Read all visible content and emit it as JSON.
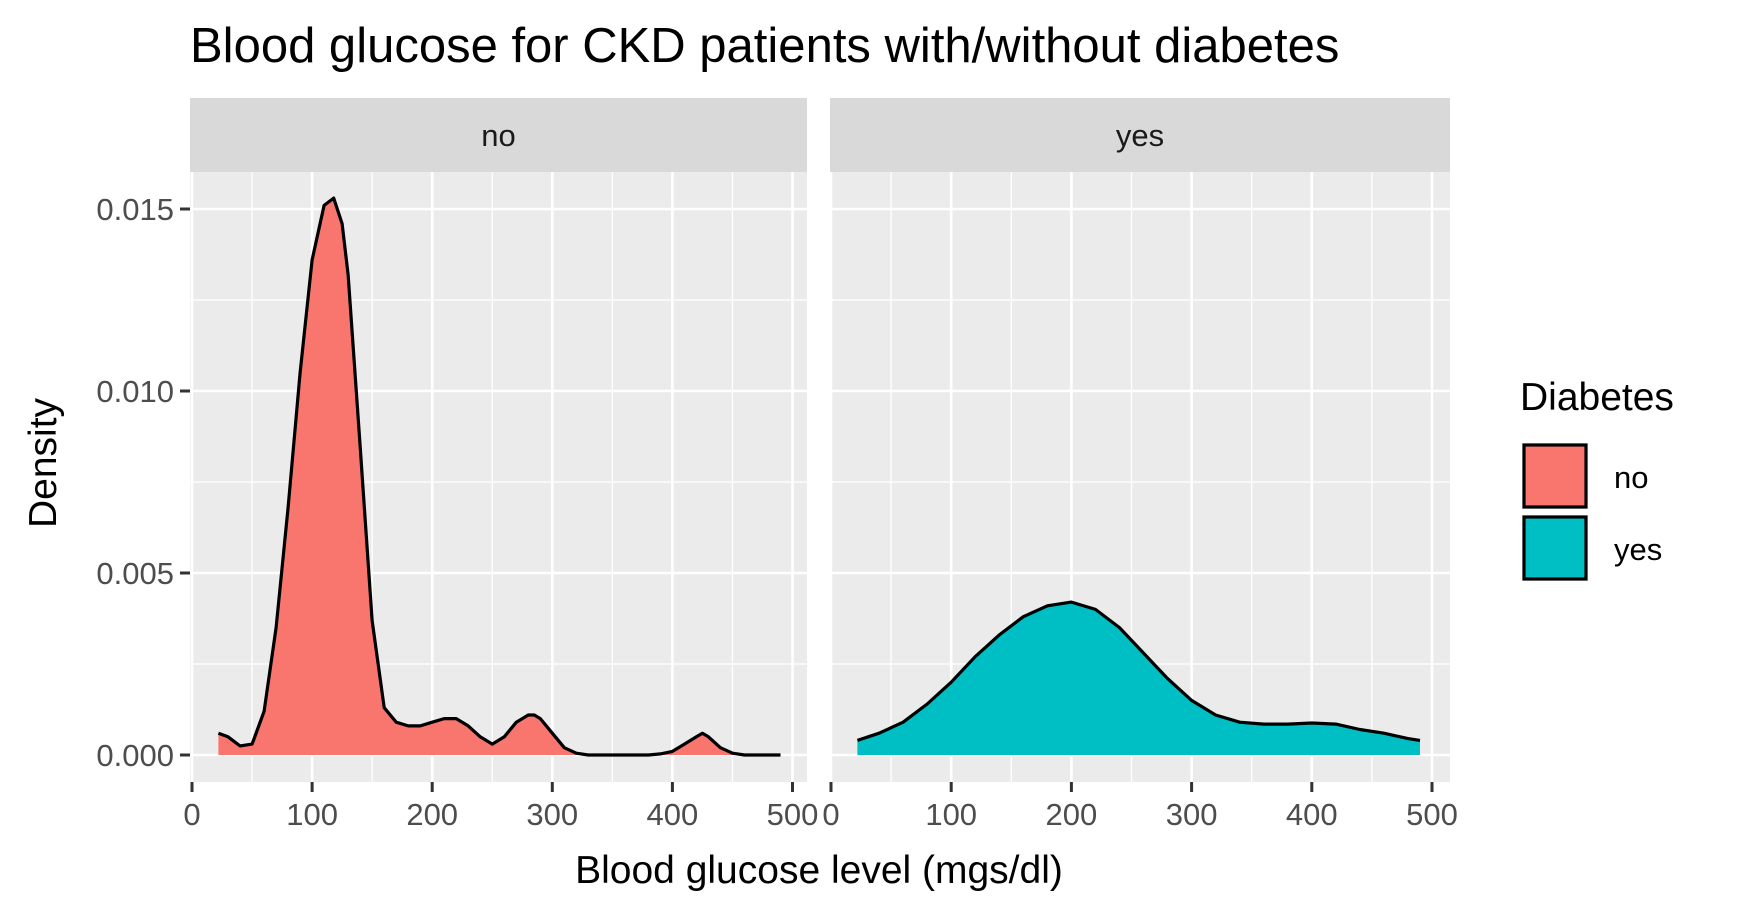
{
  "chart_data": {
    "type": "area",
    "title": "Blood glucose for CKD patients with/without diabetes",
    "xlabel": "Blood glucose level (mgs/dl)",
    "ylabel": "Density",
    "xlim": [
      0,
      500
    ],
    "ylim": [
      0,
      0.016
    ],
    "x_ticks": [
      0,
      100,
      200,
      300,
      400,
      500
    ],
    "x_tick_labels": [
      "0",
      "100",
      "200",
      "300",
      "400",
      "500"
    ],
    "y_ticks": [
      0,
      0.005,
      0.01,
      0.015
    ],
    "y_tick_labels": [
      "0.000",
      "0.005",
      "0.010",
      "0.015"
    ],
    "grid": true,
    "legend": {
      "title": "Diabetes",
      "position": "right",
      "entries": [
        "no",
        "yes"
      ]
    },
    "facets": [
      {
        "label": "no",
        "series": "no",
        "color": "#F8766D",
        "x": [
          22,
          30,
          40,
          50,
          60,
          70,
          80,
          90,
          100,
          110,
          118,
          125,
          130,
          140,
          150,
          160,
          170,
          180,
          190,
          200,
          210,
          220,
          230,
          240,
          250,
          260,
          270,
          280,
          285,
          290,
          300,
          310,
          320,
          330,
          340,
          350,
          360,
          370,
          380,
          390,
          400,
          410,
          420,
          425,
          430,
          440,
          450,
          460,
          470,
          480,
          490
        ],
        "y": [
          0.0006,
          0.0005,
          0.00025,
          0.0003,
          0.0012,
          0.0035,
          0.0068,
          0.0105,
          0.0136,
          0.0151,
          0.0153,
          0.0146,
          0.0132,
          0.0085,
          0.0037,
          0.0013,
          0.0009,
          0.0008,
          0.0008,
          0.0009,
          0.001,
          0.001,
          0.0008,
          0.0005,
          0.0003,
          0.0005,
          0.0009,
          0.0011,
          0.0011,
          0.001,
          0.0006,
          0.0002,
          5e-05,
          0.0,
          0.0,
          0.0,
          0.0,
          0.0,
          0.0,
          3e-05,
          0.0001,
          0.0003,
          0.0005,
          0.0006,
          0.0005,
          0.0002,
          5e-05,
          0.0,
          0.0,
          0.0,
          0.0
        ]
      },
      {
        "label": "yes",
        "series": "yes",
        "color": "#00BFC4",
        "x": [
          22,
          40,
          60,
          80,
          100,
          120,
          140,
          160,
          180,
          200,
          220,
          240,
          260,
          280,
          300,
          320,
          340,
          360,
          380,
          400,
          420,
          440,
          460,
          480,
          490
        ],
        "y": [
          0.0004,
          0.0006,
          0.0009,
          0.0014,
          0.002,
          0.0027,
          0.0033,
          0.0038,
          0.0041,
          0.0042,
          0.004,
          0.0035,
          0.0028,
          0.0021,
          0.0015,
          0.0011,
          0.0009,
          0.00085,
          0.00085,
          0.00088,
          0.00085,
          0.0007,
          0.0006,
          0.00045,
          0.0004
        ]
      }
    ]
  }
}
